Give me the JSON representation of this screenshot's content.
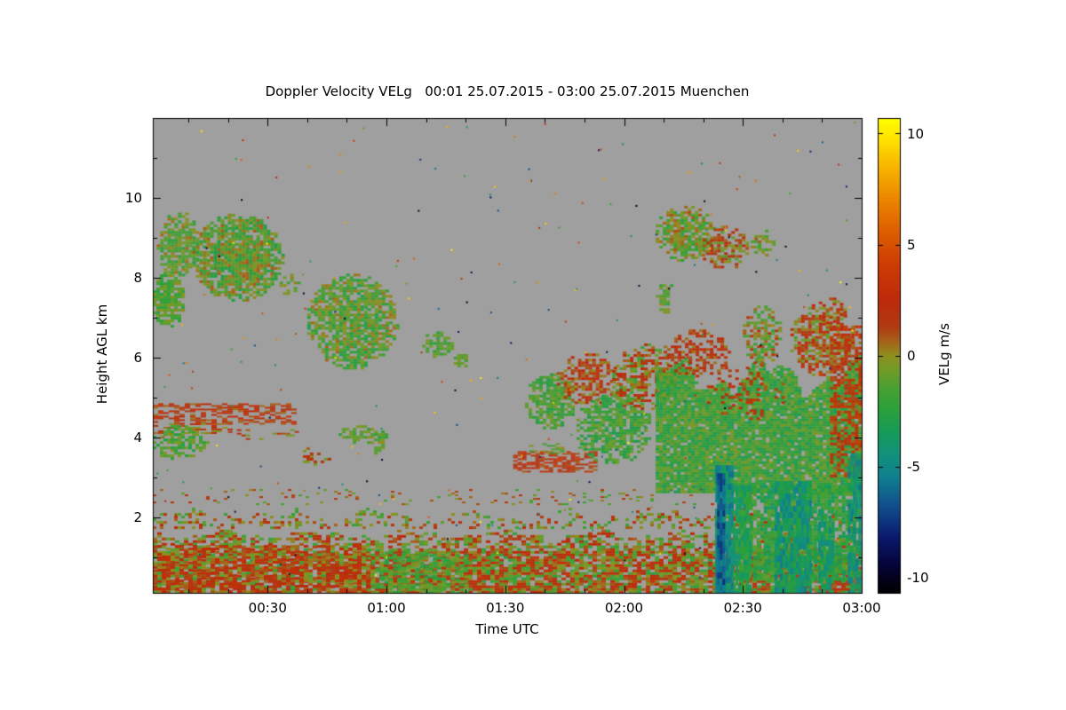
{
  "chart_data": {
    "type": "heatmap",
    "title": "Doppler Velocity VELg   00:01 25.07.2015 - 03:00 25.07.2015 Muenchen",
    "xlabel": "Time UTC",
    "ylabel": "Height AGL km",
    "colorbar_label": "VELg m/s",
    "x_range_minutes": [
      1,
      180
    ],
    "y_range_km": [
      0.1,
      12.0
    ],
    "colorbar_range": [
      -10.7,
      10.7
    ],
    "x_ticks": [
      {
        "value": 30,
        "label": "00:30"
      },
      {
        "value": 60,
        "label": "01:00"
      },
      {
        "value": 90,
        "label": "01:30"
      },
      {
        "value": 120,
        "label": "02:00"
      },
      {
        "value": 150,
        "label": "02:30"
      },
      {
        "value": 180,
        "label": "03:00"
      }
    ],
    "x_minor_step": 10,
    "y_ticks": [
      {
        "value": 2,
        "label": "2"
      },
      {
        "value": 4,
        "label": "4"
      },
      {
        "value": 6,
        "label": "6"
      },
      {
        "value": 8,
        "label": "8"
      },
      {
        "value": 10,
        "label": "10"
      }
    ],
    "y_minor_step": 1,
    "colorbar_ticks": [
      {
        "value": -10,
        "label": "-10"
      },
      {
        "value": -5,
        "label": "-5"
      },
      {
        "value": 0,
        "label": "0"
      },
      {
        "value": 5,
        "label": "5"
      },
      {
        "value": 10,
        "label": "10"
      }
    ],
    "background_color": "#9f9f9f",
    "frame_color": "#000000",
    "colormap": [
      [
        -10.7,
        "#000000"
      ],
      [
        -9.5,
        "#050338"
      ],
      [
        -8.2,
        "#0a1a6e"
      ],
      [
        -6.8,
        "#114f8c"
      ],
      [
        -5.5,
        "#0f7f8f"
      ],
      [
        -4.5,
        "#12917c"
      ],
      [
        -3.5,
        "#169a5a"
      ],
      [
        -2.5,
        "#2aa03c"
      ],
      [
        -1.5,
        "#47a032"
      ],
      [
        -0.7,
        "#6f9c28"
      ],
      [
        0.0,
        "#8f8f1e"
      ],
      [
        0.6,
        "#a4641a"
      ],
      [
        1.3,
        "#b13a12"
      ],
      [
        2.5,
        "#bd2a0a"
      ],
      [
        4.0,
        "#cc3a04"
      ],
      [
        5.5,
        "#dc5c00"
      ],
      [
        7.0,
        "#ec8400"
      ],
      [
        8.5,
        "#f8b400"
      ],
      [
        9.7,
        "#ffe000"
      ],
      [
        10.7,
        "#ffff00"
      ]
    ],
    "features": [
      {
        "name": "boundary-layer-low",
        "shape": "rect",
        "t": [
          1,
          180
        ],
        "h": [
          0.12,
          1.15
        ],
        "density": 0.85,
        "vel": 0.4,
        "spread": 2.8,
        "cell": [
          5,
          3
        ]
      },
      {
        "name": "boundary-layer-mid",
        "shape": "rect",
        "t": [
          1,
          180
        ],
        "h": [
          1.15,
          1.75
        ],
        "density": 0.55,
        "vel": 0.2,
        "spread": 2.5,
        "cell": [
          5,
          3
        ],
        "soft": 0.5
      },
      {
        "name": "boundary-layer-top",
        "shape": "rect",
        "t": [
          1,
          180
        ],
        "h": [
          1.75,
          2.3
        ],
        "density": 0.28,
        "vel": 0.1,
        "spread": 2.3,
        "cell": [
          4,
          3
        ],
        "soft": 0.7
      },
      {
        "name": "boundary-layer-wisps",
        "shape": "rect",
        "t": [
          1,
          180
        ],
        "h": [
          2.3,
          2.7
        ],
        "density": 0.08,
        "vel": 0.0,
        "spread": 2.0,
        "cell": [
          4,
          2
        ]
      },
      {
        "name": "bl-left-warm",
        "shape": "rect",
        "t": [
          1,
          55
        ],
        "h": [
          0.12,
          1.3
        ],
        "density": 0.45,
        "vel": 1.4,
        "spread": 1.8,
        "cell": [
          5,
          3
        ]
      },
      {
        "name": "bl-mid-green",
        "shape": "rect",
        "t": [
          55,
          80
        ],
        "h": [
          0.12,
          1.2
        ],
        "density": 0.45,
        "vel": -1.6,
        "spread": 1.3,
        "cell": [
          5,
          3
        ]
      },
      {
        "name": "cirrus-left-a",
        "shape": "ellipse",
        "t": [
          1,
          9
        ],
        "h": [
          6.7,
          8.15
        ],
        "density": 0.85,
        "vel": -1.3,
        "spread": 1.4
      },
      {
        "name": "cirrus-left-b",
        "shape": "ellipse",
        "t": [
          2,
          13
        ],
        "h": [
          8.0,
          9.7
        ],
        "density": 0.75,
        "vel": -1.0,
        "spread": 1.6
      },
      {
        "name": "cirrus-left-c",
        "shape": "ellipse",
        "t": [
          11,
          34
        ],
        "h": [
          7.4,
          9.6
        ],
        "density": 0.85,
        "vel": -1.1,
        "spread": 1.9
      },
      {
        "name": "cirrus-left-d",
        "shape": "ellipse",
        "t": [
          33,
          38
        ],
        "h": [
          7.5,
          8.1
        ],
        "density": 0.4,
        "vel": -0.8,
        "spread": 1.2
      },
      {
        "name": "cirrus-mid",
        "shape": "ellipse",
        "t": [
          40,
          63
        ],
        "h": [
          5.7,
          8.1
        ],
        "density": 0.8,
        "vel": -1.2,
        "spread": 1.8
      },
      {
        "name": "patch-6km-a",
        "shape": "ellipse",
        "t": [
          69,
          77
        ],
        "h": [
          6.0,
          6.65
        ],
        "density": 0.75,
        "vel": -1.4,
        "spread": 1.2
      },
      {
        "name": "patch-6km-b",
        "shape": "ellipse",
        "t": [
          77,
          81
        ],
        "h": [
          5.7,
          6.15
        ],
        "density": 0.6,
        "vel": -1.0,
        "spread": 1.0
      },
      {
        "name": "band-4p5-red",
        "shape": "rect",
        "t": [
          1,
          36
        ],
        "h": [
          4.35,
          4.85
        ],
        "density": 0.5,
        "vel": 1.9,
        "spread": 1.7,
        "cell": [
          6,
          2
        ]
      },
      {
        "name": "band-4p2-red",
        "shape": "rect",
        "t": [
          1,
          20
        ],
        "h": [
          4.1,
          4.35
        ],
        "density": 0.45,
        "vel": 1.1,
        "spread": 1.6,
        "cell": [
          6,
          2
        ]
      },
      {
        "name": "patch-4-green-left",
        "shape": "ellipse",
        "t": [
          1,
          15
        ],
        "h": [
          3.4,
          4.3
        ],
        "density": 0.65,
        "vel": -1.6,
        "spread": 1.4
      },
      {
        "name": "band-4-wisp",
        "shape": "rect",
        "t": [
          20,
          37
        ],
        "h": [
          3.95,
          4.2
        ],
        "density": 0.25,
        "vel": 0.6,
        "spread": 1.6,
        "cell": [
          5,
          2
        ]
      },
      {
        "name": "patch-3p5-specks",
        "shape": "ellipse",
        "t": [
          38,
          46
        ],
        "h": [
          3.3,
          3.75
        ],
        "density": 0.45,
        "vel": 0.9,
        "spread": 1.9
      },
      {
        "name": "patch-4-green-mid",
        "shape": "ellipse",
        "t": [
          47,
          61
        ],
        "h": [
          3.85,
          4.3
        ],
        "density": 0.55,
        "vel": -1.2,
        "spread": 1.2
      },
      {
        "name": "patch-3p7-green",
        "shape": "ellipse",
        "t": [
          56,
          60
        ],
        "h": [
          3.55,
          3.9
        ],
        "density": 0.45,
        "vel": -0.8,
        "spread": 1.0
      },
      {
        "name": "band-3p4-orange",
        "shape": "rect",
        "t": [
          92,
          113
        ],
        "h": [
          3.15,
          3.65
        ],
        "density": 0.55,
        "vel": 2.3,
        "spread": 1.7,
        "cell": [
          5,
          2
        ]
      },
      {
        "name": "band-3p7-green",
        "shape": "rect",
        "t": [
          96,
          111
        ],
        "h": [
          3.6,
          3.85
        ],
        "density": 0.3,
        "vel": -1.0,
        "spread": 1.2,
        "cell": [
          5,
          2
        ]
      },
      {
        "name": "cluster-green-a",
        "shape": "ellipse",
        "t": [
          95,
          108
        ],
        "h": [
          4.2,
          5.6
        ],
        "density": 0.75,
        "vel": -1.6,
        "spread": 1.3
      },
      {
        "name": "cluster-red-a",
        "shape": "ellipse",
        "t": [
          103,
          119
        ],
        "h": [
          4.8,
          6.1
        ],
        "density": 0.55,
        "vel": 1.6,
        "spread": 1.8
      },
      {
        "name": "cluster-green-b",
        "shape": "ellipse",
        "t": [
          108,
          127
        ],
        "h": [
          3.3,
          5.2
        ],
        "density": 0.7,
        "vel": -1.9,
        "spread": 1.4
      },
      {
        "name": "cluster-mixed",
        "shape": "ellipse",
        "t": [
          117,
          133
        ],
        "h": [
          4.6,
          6.35
        ],
        "density": 0.65,
        "vel": 0.3,
        "spread": 2.3
      },
      {
        "name": "system-core-green",
        "shape": "rect",
        "t": [
          128,
          180
        ],
        "h": [
          2.6,
          6.2
        ],
        "density": 0.92,
        "vel": -1.8,
        "spread": 1.5,
        "soft": 0.35
      },
      {
        "name": "system-top-red",
        "shape": "ellipse",
        "t": [
          130,
          147
        ],
        "h": [
          5.5,
          6.7
        ],
        "density": 0.55,
        "vel": 1.8,
        "spread": 1.6
      },
      {
        "name": "system-peak-a",
        "shape": "ellipse",
        "t": [
          150,
          160
        ],
        "h": [
          5.8,
          7.3
        ],
        "density": 0.65,
        "vel": -0.4,
        "spread": 2.0
      },
      {
        "name": "system-peak-b",
        "shape": "ellipse",
        "t": [
          162,
          178
        ],
        "h": [
          5.5,
          7.4
        ],
        "density": 0.7,
        "vel": 0.9,
        "spread": 2.2
      },
      {
        "name": "system-right-red",
        "shape": "rect",
        "t": [
          172,
          180
        ],
        "h": [
          3.0,
          6.8
        ],
        "density": 0.55,
        "vel": 2.1,
        "spread": 1.8
      },
      {
        "name": "system-red-specks",
        "shape": "ellipse",
        "t": [
          140,
          161
        ],
        "h": [
          4.4,
          5.9
        ],
        "density": 0.22,
        "vel": 2.1,
        "spread": 1.5
      },
      {
        "name": "system-low-green",
        "shape": "rect",
        "t": [
          149,
          178
        ],
        "h": [
          0.4,
          2.8
        ],
        "density": 0.8,
        "vel": -2.3,
        "spread": 1.4,
        "cell": [
          4,
          4
        ]
      },
      {
        "name": "downdraft-a",
        "shape": "rect",
        "t": [
          143,
          147.5
        ],
        "h": [
          0.12,
          3.3
        ],
        "density": 0.95,
        "vel": -4.6,
        "spread": 1.3,
        "cell": [
          3,
          7
        ]
      },
      {
        "name": "downdraft-a-core",
        "shape": "rect",
        "t": [
          143.5,
          145.2
        ],
        "h": [
          0.12,
          3.1
        ],
        "density": 0.9,
        "vel": -6.6,
        "spread": 1.1,
        "cell": [
          3,
          7
        ]
      },
      {
        "name": "downdraft-b",
        "shape": "rect",
        "t": [
          147.5,
          152
        ],
        "h": [
          0.12,
          2.8
        ],
        "density": 0.85,
        "vel": -3.2,
        "spread": 1.3,
        "cell": [
          3,
          7
        ]
      },
      {
        "name": "downdraft-c",
        "shape": "rect",
        "t": [
          158,
          167
        ],
        "h": [
          0.12,
          2.9
        ],
        "density": 0.85,
        "vel": -4.1,
        "spread": 1.5,
        "cell": [
          3,
          7
        ]
      },
      {
        "name": "downdraft-d",
        "shape": "rect",
        "t": [
          169,
          173
        ],
        "h": [
          0.12,
          2.2
        ],
        "density": 0.7,
        "vel": -3.8,
        "spread": 1.3,
        "cell": [
          3,
          7
        ]
      },
      {
        "name": "downdraft-e",
        "shape": "rect",
        "t": [
          176.5,
          180
        ],
        "h": [
          0.12,
          3.6
        ],
        "density": 0.8,
        "vel": -4.3,
        "spread": 1.5,
        "cell": [
          3,
          7
        ]
      },
      {
        "name": "cirrus-right-a",
        "shape": "ellipse",
        "t": [
          128,
          143
        ],
        "h": [
          8.4,
          9.8
        ],
        "density": 0.8,
        "vel": -0.8,
        "spread": 1.8
      },
      {
        "name": "cirrus-right-b",
        "shape": "ellipse",
        "t": [
          139,
          152
        ],
        "h": [
          8.2,
          9.3
        ],
        "density": 0.55,
        "vel": 0.5,
        "spread": 2.0
      },
      {
        "name": "cirrus-right-c",
        "shape": "ellipse",
        "t": [
          152,
          158
        ],
        "h": [
          8.5,
          9.2
        ],
        "density": 0.55,
        "vel": -0.5,
        "spread": 1.5
      },
      {
        "name": "patch-7p5-right",
        "shape": "ellipse",
        "t": [
          128,
          133
        ],
        "h": [
          7.1,
          7.9
        ],
        "density": 0.65,
        "vel": -1.0,
        "spread": 1.2
      },
      {
        "name": "patch-7-right",
        "shape": "ellipse",
        "t": [
          170,
          176
        ],
        "h": [
          6.7,
          7.5
        ],
        "density": 0.55,
        "vel": 1.4,
        "spread": 1.8
      }
    ],
    "speckles": {
      "count": 280
    }
  }
}
